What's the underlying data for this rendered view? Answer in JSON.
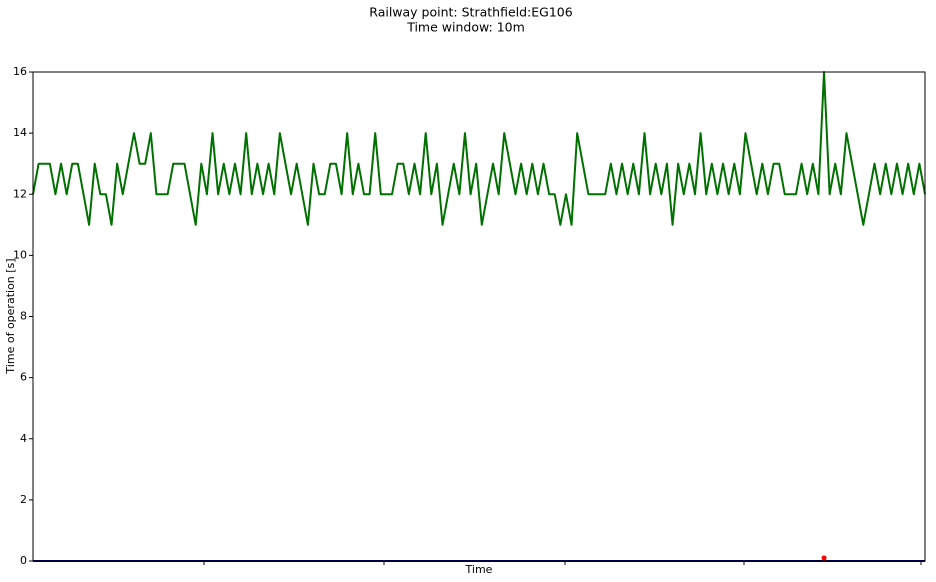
{
  "chart_data": {
    "type": "line",
    "title": "Railway point: Strathfield:EG106",
    "subtitle": "Time window: 10m",
    "xlabel": "Time",
    "ylabel": "Time of operation [s]",
    "ylim": [
      0,
      16
    ],
    "yticks": [
      0,
      2,
      4,
      6,
      8,
      10,
      12,
      14,
      16
    ],
    "series": [
      {
        "color": "#007000",
        "mode": "line",
        "values": [
          12,
          13,
          13,
          13,
          12,
          13,
          12,
          13,
          13,
          12,
          11,
          13,
          12,
          12,
          11,
          13,
          12,
          13,
          14,
          13,
          13,
          14,
          12,
          12,
          12,
          13,
          13,
          13,
          12,
          11,
          13,
          12,
          14,
          12,
          13,
          12,
          13,
          12,
          14,
          12,
          13,
          12,
          13,
          12,
          14,
          13,
          12,
          13,
          12,
          11,
          13,
          12,
          12,
          13,
          13,
          12,
          14,
          12,
          13,
          12,
          12,
          14,
          12,
          12,
          12,
          13,
          13,
          12,
          13,
          12,
          14,
          12,
          13,
          11,
          12,
          13,
          12,
          14,
          12,
          13,
          11,
          12,
          13,
          12,
          14,
          13,
          12,
          13,
          12,
          13,
          12,
          13,
          12,
          12,
          11,
          12,
          11,
          14,
          13,
          12,
          12,
          12,
          12,
          13,
          12,
          13,
          12,
          13,
          12,
          14,
          12,
          13,
          12,
          13,
          11,
          13,
          12,
          13,
          12,
          14,
          12,
          13,
          12,
          13,
          12,
          13,
          12,
          14,
          13,
          12,
          13,
          12,
          13,
          13,
          12,
          12,
          12,
          13,
          12,
          13,
          12,
          16,
          12,
          13,
          12,
          14,
          13,
          12,
          11,
          12,
          13,
          12,
          13,
          12,
          13,
          12,
          13,
          12,
          13,
          12
        ]
      },
      {
        "color": "#000080",
        "mode": "line",
        "values": [
          0,
          0,
          0,
          0,
          0,
          0,
          0,
          0,
          0,
          0,
          0,
          0,
          0,
          0,
          0,
          0,
          0,
          0,
          0,
          0,
          0,
          0,
          0,
          0,
          0,
          0,
          0,
          0,
          0,
          0,
          0,
          0,
          0,
          0,
          0,
          0,
          0,
          0,
          0,
          0,
          0,
          0,
          0,
          0,
          0,
          0,
          0,
          0,
          0,
          0,
          0,
          0,
          0,
          0,
          0,
          0,
          0,
          0,
          0,
          0,
          0,
          0,
          0,
          0,
          0,
          0,
          0,
          0,
          0,
          0,
          0,
          0,
          0,
          0,
          0,
          0,
          0,
          0,
          0,
          0,
          0,
          0,
          0,
          0,
          0,
          0,
          0,
          0,
          0,
          0,
          0,
          0,
          0,
          0,
          0,
          0,
          0,
          0,
          0,
          0,
          0,
          0,
          0,
          0,
          0,
          0,
          0,
          0,
          0,
          0,
          0,
          0,
          0,
          0,
          0,
          0,
          0,
          0,
          0,
          0,
          0,
          0,
          0,
          0,
          0,
          0,
          0,
          0,
          0,
          0,
          0,
          0,
          0,
          0,
          0,
          0,
          0,
          0,
          0,
          0,
          0,
          0,
          0,
          0,
          0,
          0,
          0,
          0,
          0,
          0,
          0,
          0,
          0,
          0,
          0,
          0,
          0,
          0,
          0,
          0
        ]
      },
      {
        "color": "#ff0000",
        "mode": "markers",
        "values": [
          null,
          null,
          null,
          null,
          null,
          null,
          null,
          null,
          null,
          null,
          null,
          null,
          null,
          null,
          null,
          null,
          null,
          null,
          null,
          null,
          null,
          null,
          null,
          null,
          null,
          null,
          null,
          null,
          null,
          null,
          null,
          null,
          null,
          null,
          null,
          null,
          null,
          null,
          null,
          null,
          null,
          null,
          null,
          null,
          null,
          null,
          null,
          null,
          null,
          null,
          null,
          null,
          null,
          null,
          null,
          null,
          null,
          null,
          null,
          null,
          null,
          null,
          null,
          null,
          null,
          null,
          null,
          null,
          null,
          null,
          null,
          null,
          null,
          null,
          null,
          null,
          null,
          null,
          null,
          null,
          null,
          null,
          null,
          null,
          null,
          null,
          null,
          null,
          null,
          null,
          null,
          null,
          null,
          null,
          null,
          null,
          null,
          null,
          null,
          null,
          null,
          null,
          null,
          null,
          null,
          null,
          null,
          null,
          null,
          null,
          null,
          null,
          null,
          null,
          null,
          null,
          null,
          null,
          null,
          null,
          null,
          null,
          null,
          null,
          null,
          null,
          null,
          null,
          null,
          null,
          null,
          null,
          null,
          null,
          null,
          null,
          null,
          null,
          null,
          null,
          null,
          0.1,
          null,
          null,
          null,
          null,
          null,
          null,
          null,
          null,
          null,
          null,
          null,
          null,
          null,
          null,
          null,
          null,
          null,
          null
        ]
      }
    ]
  }
}
